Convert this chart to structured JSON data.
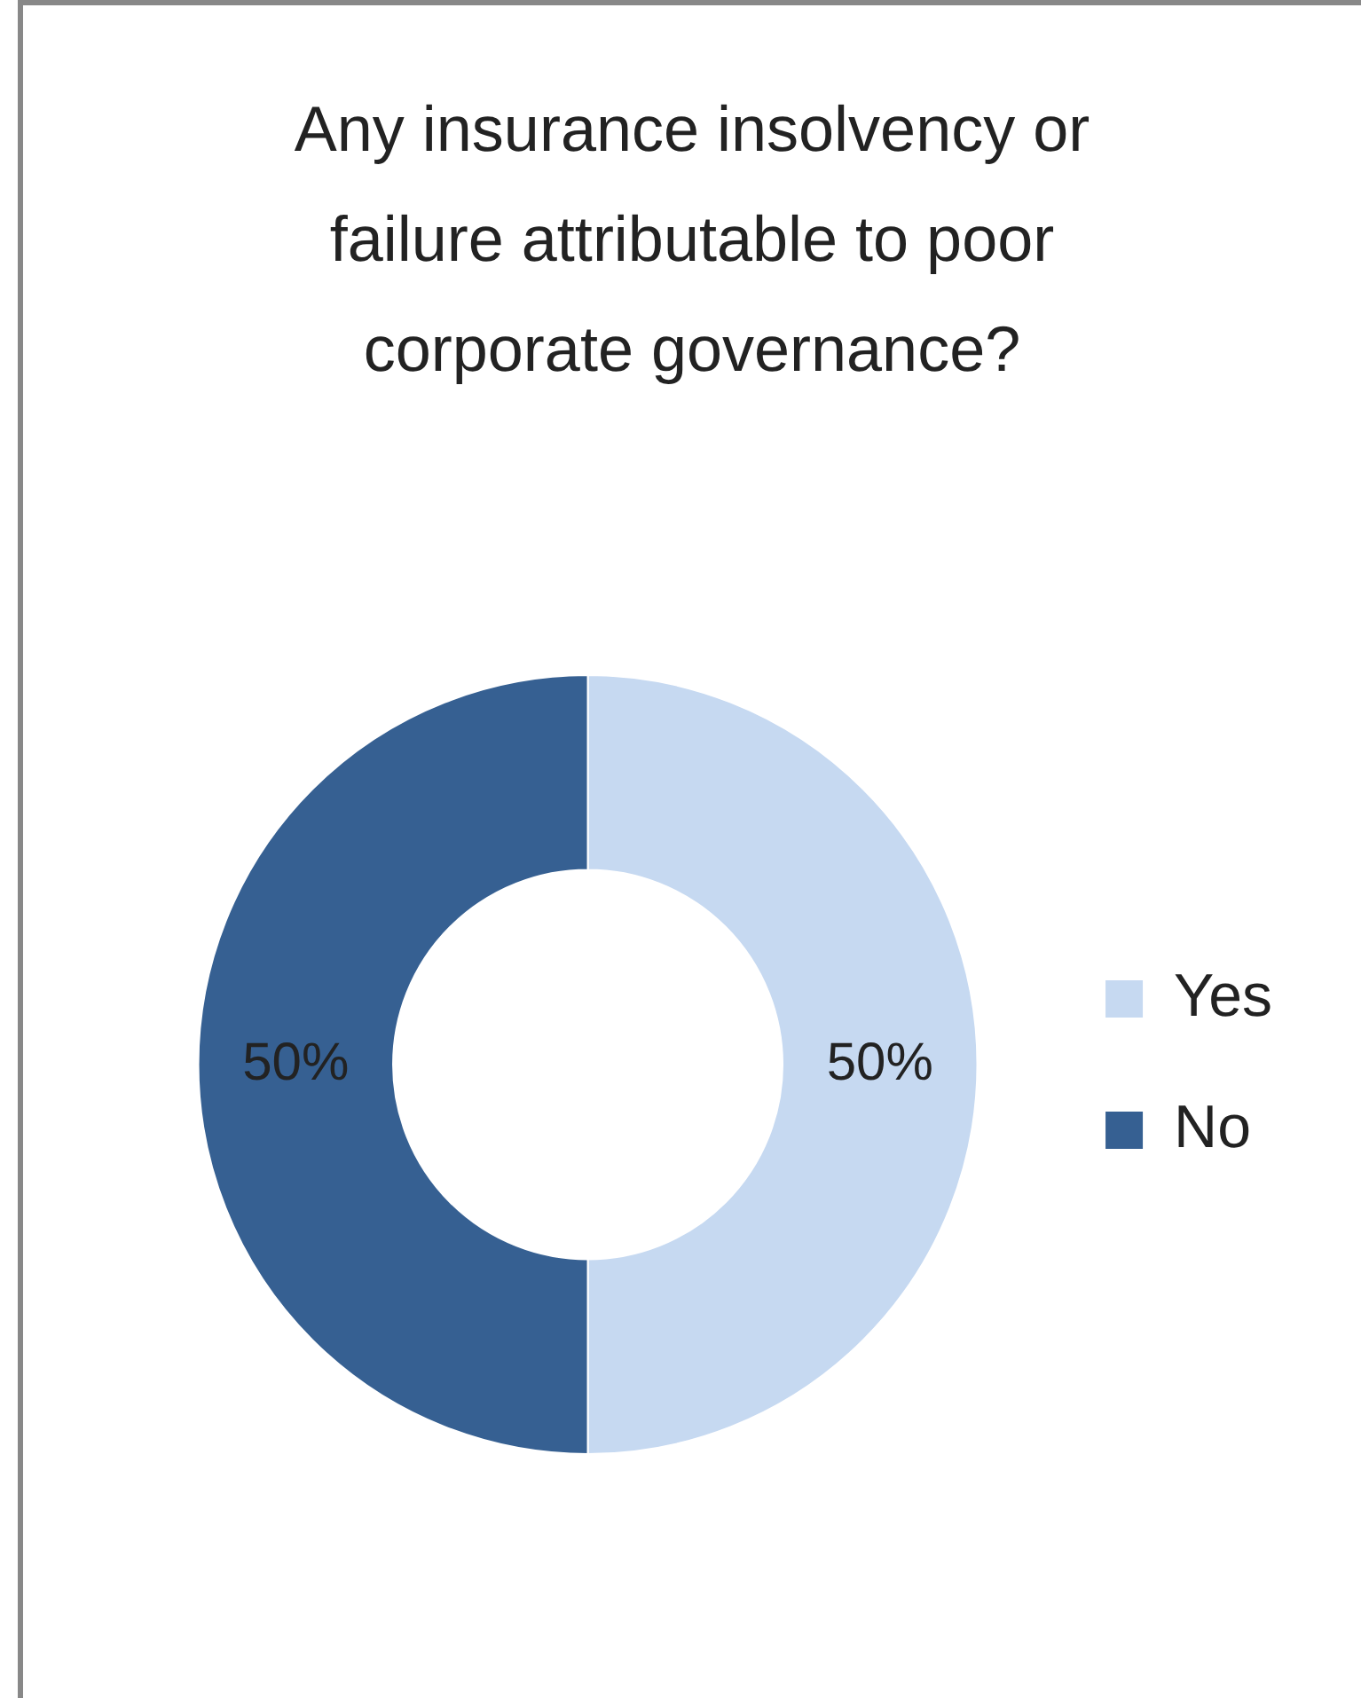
{
  "chart_data": {
    "type": "donut",
    "title": "Any insurance insolvency or failure attributable to poor corporate governance?",
    "categories": [
      "Yes",
      "No"
    ],
    "values": [
      50,
      50
    ],
    "colors": [
      "#c6d9f1",
      "#366092"
    ],
    "value_labels": [
      "50%",
      "50%"
    ],
    "legend": "right"
  }
}
